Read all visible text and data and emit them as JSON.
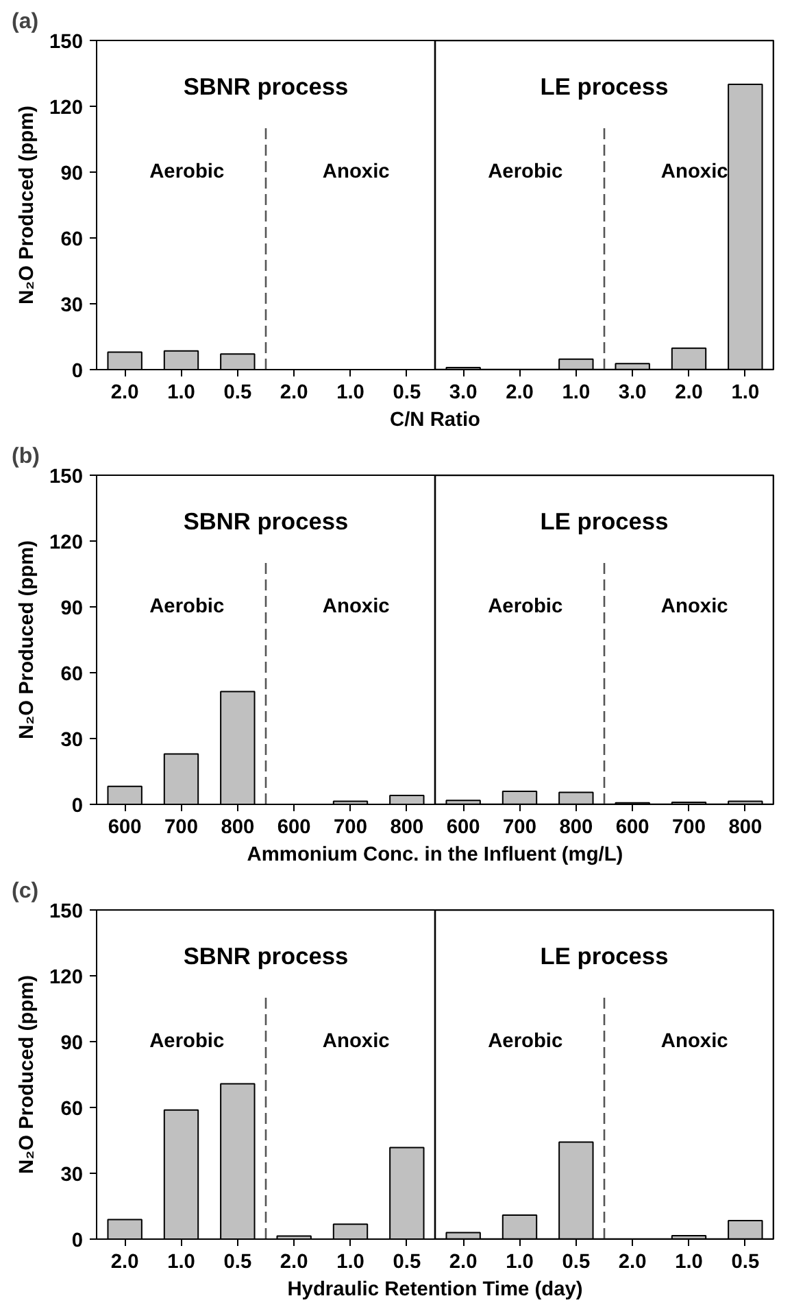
{
  "chart_data": [
    {
      "type": "bar",
      "title": "(a)",
      "xlabel": "C/N Ratio",
      "ylabel": "N₂O Produced (ppm)",
      "categories": [
        "2.0",
        "1.0",
        "0.5",
        "2.0",
        "1.0",
        "0.5",
        "3.0",
        "2.0",
        "1.0",
        "3.0",
        "2.0",
        "1.0"
      ],
      "values": [
        8.0,
        8.5,
        7.1,
        0,
        0,
        0,
        0.9,
        0,
        4.8,
        2.7,
        9.8,
        130
      ],
      "color": "#c0c0c0",
      "ylim": [
        0,
        150
      ],
      "yticks": [
        0,
        30,
        60,
        90,
        120,
        150
      ],
      "grid": false,
      "annotations": [
        "SBNR process",
        "LE process",
        "Aerobic",
        "Anoxic",
        "Aerobic",
        "Anoxic"
      ]
    },
    {
      "type": "bar",
      "title": "(b)",
      "xlabel": "Ammonium Conc. in the Influent (mg/L)",
      "ylabel": "N₂O Produced (ppm)",
      "categories": [
        "600",
        "700",
        "800",
        "600",
        "700",
        "800",
        "600",
        "700",
        "800",
        "600",
        "700",
        "800"
      ],
      "values": [
        8.2,
        23,
        51.4,
        0,
        1.4,
        4.1,
        1.8,
        5.9,
        5.5,
        0.7,
        0.9,
        1.4
      ],
      "color": "#c0c0c0",
      "ylim": [
        0,
        150
      ],
      "yticks": [
        0,
        30,
        60,
        90,
        120,
        150
      ],
      "grid": false,
      "annotations": [
        "SBNR process",
        "LE process",
        "Aerobic",
        "Anoxic",
        "Aerobic",
        "Anoxic"
      ]
    },
    {
      "type": "bar",
      "title": "(c)",
      "xlabel": "Hydraulic Retention Time (day)",
      "ylabel": "N₂O Produced (ppm)",
      "categories": [
        "2.0",
        "1.0",
        "0.5",
        "2.0",
        "1.0",
        "0.5",
        "2.0",
        "1.0",
        "0.5",
        "2.0",
        "1.0",
        "0.5"
      ],
      "values": [
        8.9,
        58.8,
        70.8,
        1.4,
        6.8,
        41.7,
        3.0,
        10.9,
        44.2,
        0,
        1.6,
        8.4
      ],
      "color": "#c0c0c0",
      "ylim": [
        0,
        150
      ],
      "yticks": [
        0,
        30,
        60,
        90,
        120,
        150
      ],
      "grid": false,
      "annotations": [
        "SBNR process",
        "LE process",
        "Aerobic",
        "Anoxic",
        "Aerobic",
        "Anoxic"
      ]
    }
  ]
}
